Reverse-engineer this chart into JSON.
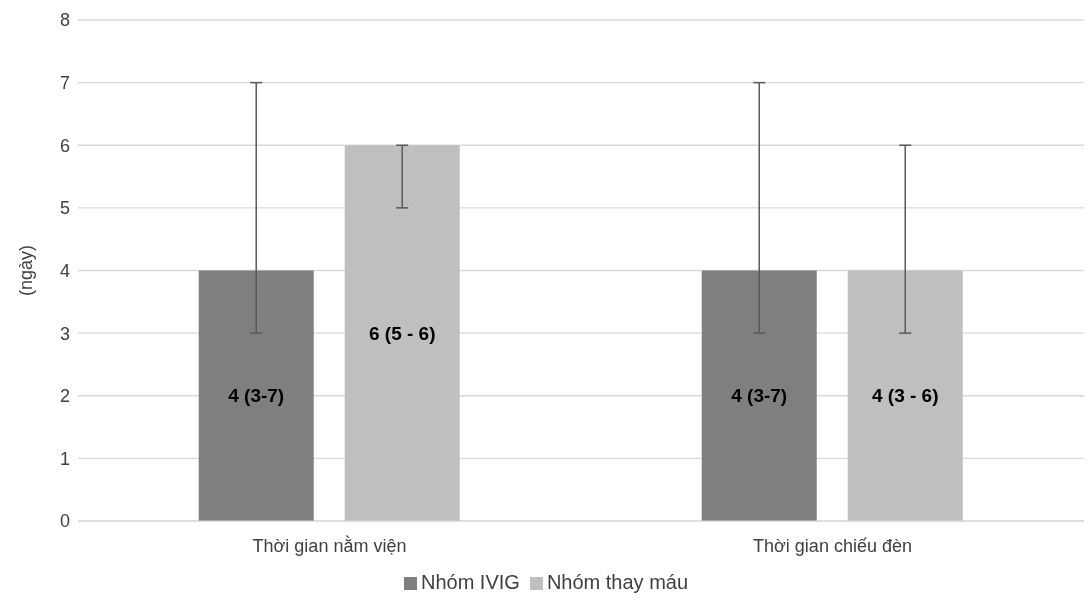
{
  "chart_data": {
    "type": "bar",
    "ylabel": "(ngày)",
    "categories": [
      "Thời gian nằm viện",
      "Thời gian chiếu đèn"
    ],
    "series": [
      {
        "name": "Nhóm IVIG",
        "color": "#7f7f7f",
        "values": [
          4,
          4
        ],
        "errors": [
          [
            3,
            7
          ],
          [
            3,
            7
          ]
        ],
        "value_labels": [
          "4 (3-7)",
          "4 (3-7)"
        ]
      },
      {
        "name": "Nhóm thay máu",
        "color": "#bfbfbf",
        "values": [
          6,
          4
        ],
        "errors": [
          [
            5,
            6
          ],
          [
            3,
            6
          ]
        ],
        "value_labels": [
          "6 (5 - 6)",
          "4 (3 - 6)"
        ]
      }
    ],
    "ylim": [
      0,
      8
    ],
    "yticks": [
      0,
      1,
      2,
      3,
      4,
      5,
      6,
      7,
      8
    ],
    "grid": "y",
    "legend": "bottom"
  }
}
